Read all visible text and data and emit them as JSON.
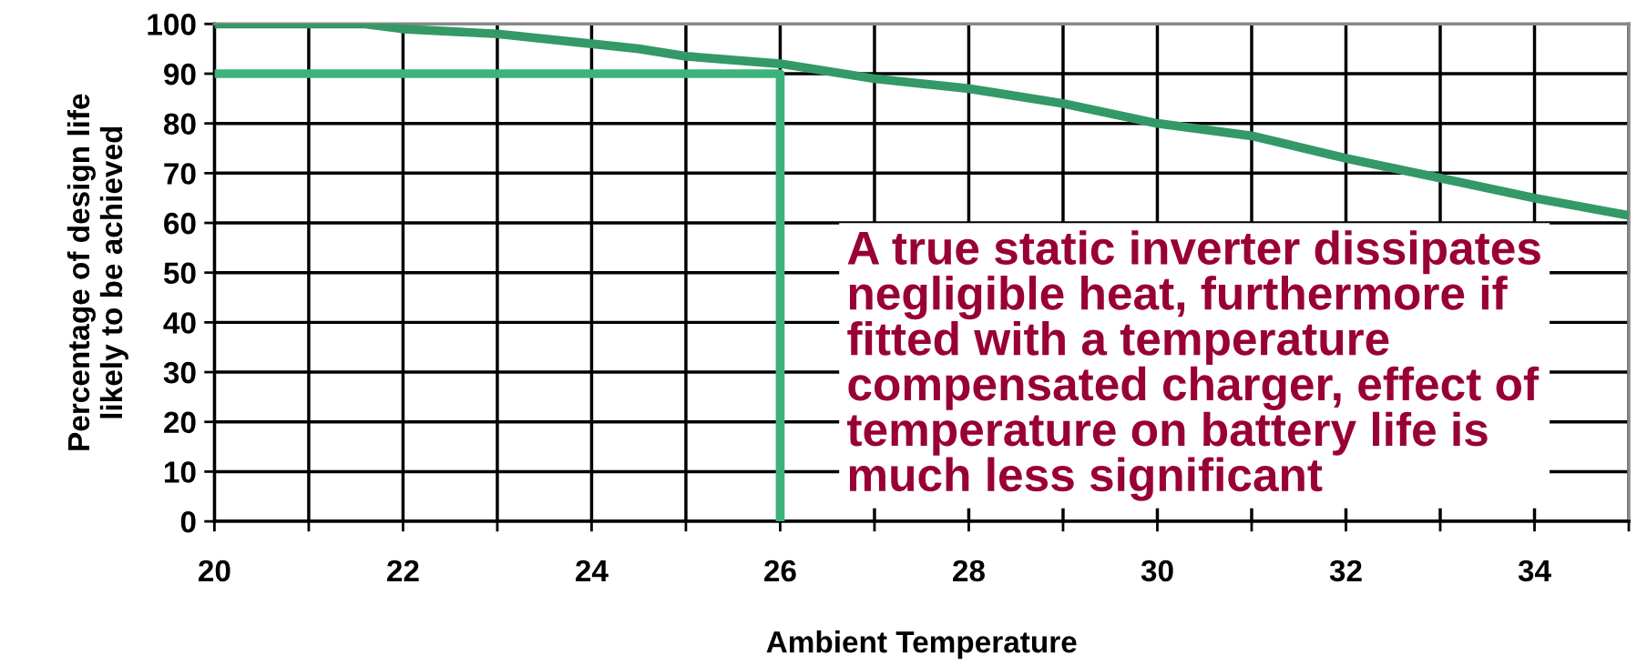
{
  "chart_data": {
    "type": "line",
    "xlabel": "Ambient Temperature",
    "ylabel": "Percentage of design life\nlikely to be achieved",
    "series": [
      {
        "color": "#339966",
        "x": [
          20,
          21,
          21.6,
          22,
          23,
          24,
          24.5,
          25,
          26,
          27,
          28,
          29,
          30,
          31,
          32,
          33,
          33.5,
          34,
          35
        ],
        "values": [
          100,
          100,
          100,
          99,
          98,
          96,
          95,
          93.5,
          92,
          89,
          87,
          84,
          80,
          77.5,
          73,
          69,
          67,
          65,
          61.5
        ]
      },
      {
        "color": "#3cb37a",
        "x": [
          20,
          26,
          26
        ],
        "values": [
          90,
          90,
          0
        ]
      }
    ],
    "annotations": [
      "A true static inverter dissipates\nnegligible heat, furthermore if\nfitted with a temperature\ncompensated charger, effect of\ntemperature on battery life is\nmuch less significant"
    ],
    "xlim": [
      20,
      35
    ],
    "ylim": [
      0,
      100
    ],
    "xticks": [
      20,
      {
        "value": 21,
        "label": null
      },
      22,
      {
        "value": 23,
        "label": null
      },
      24,
      {
        "value": 25,
        "label": null
      },
      26,
      {
        "value": 27,
        "label": null
      },
      28,
      {
        "value": 29,
        "label": null
      },
      30,
      {
        "value": 31,
        "label": null
      },
      32,
      {
        "value": 33,
        "label": null
      },
      34,
      {
        "value": 35,
        "label": null
      }
    ],
    "yticks": [
      0,
      10,
      20,
      30,
      40,
      50,
      60,
      70,
      80,
      90,
      100
    ],
    "grid": true,
    "legend": false
  }
}
